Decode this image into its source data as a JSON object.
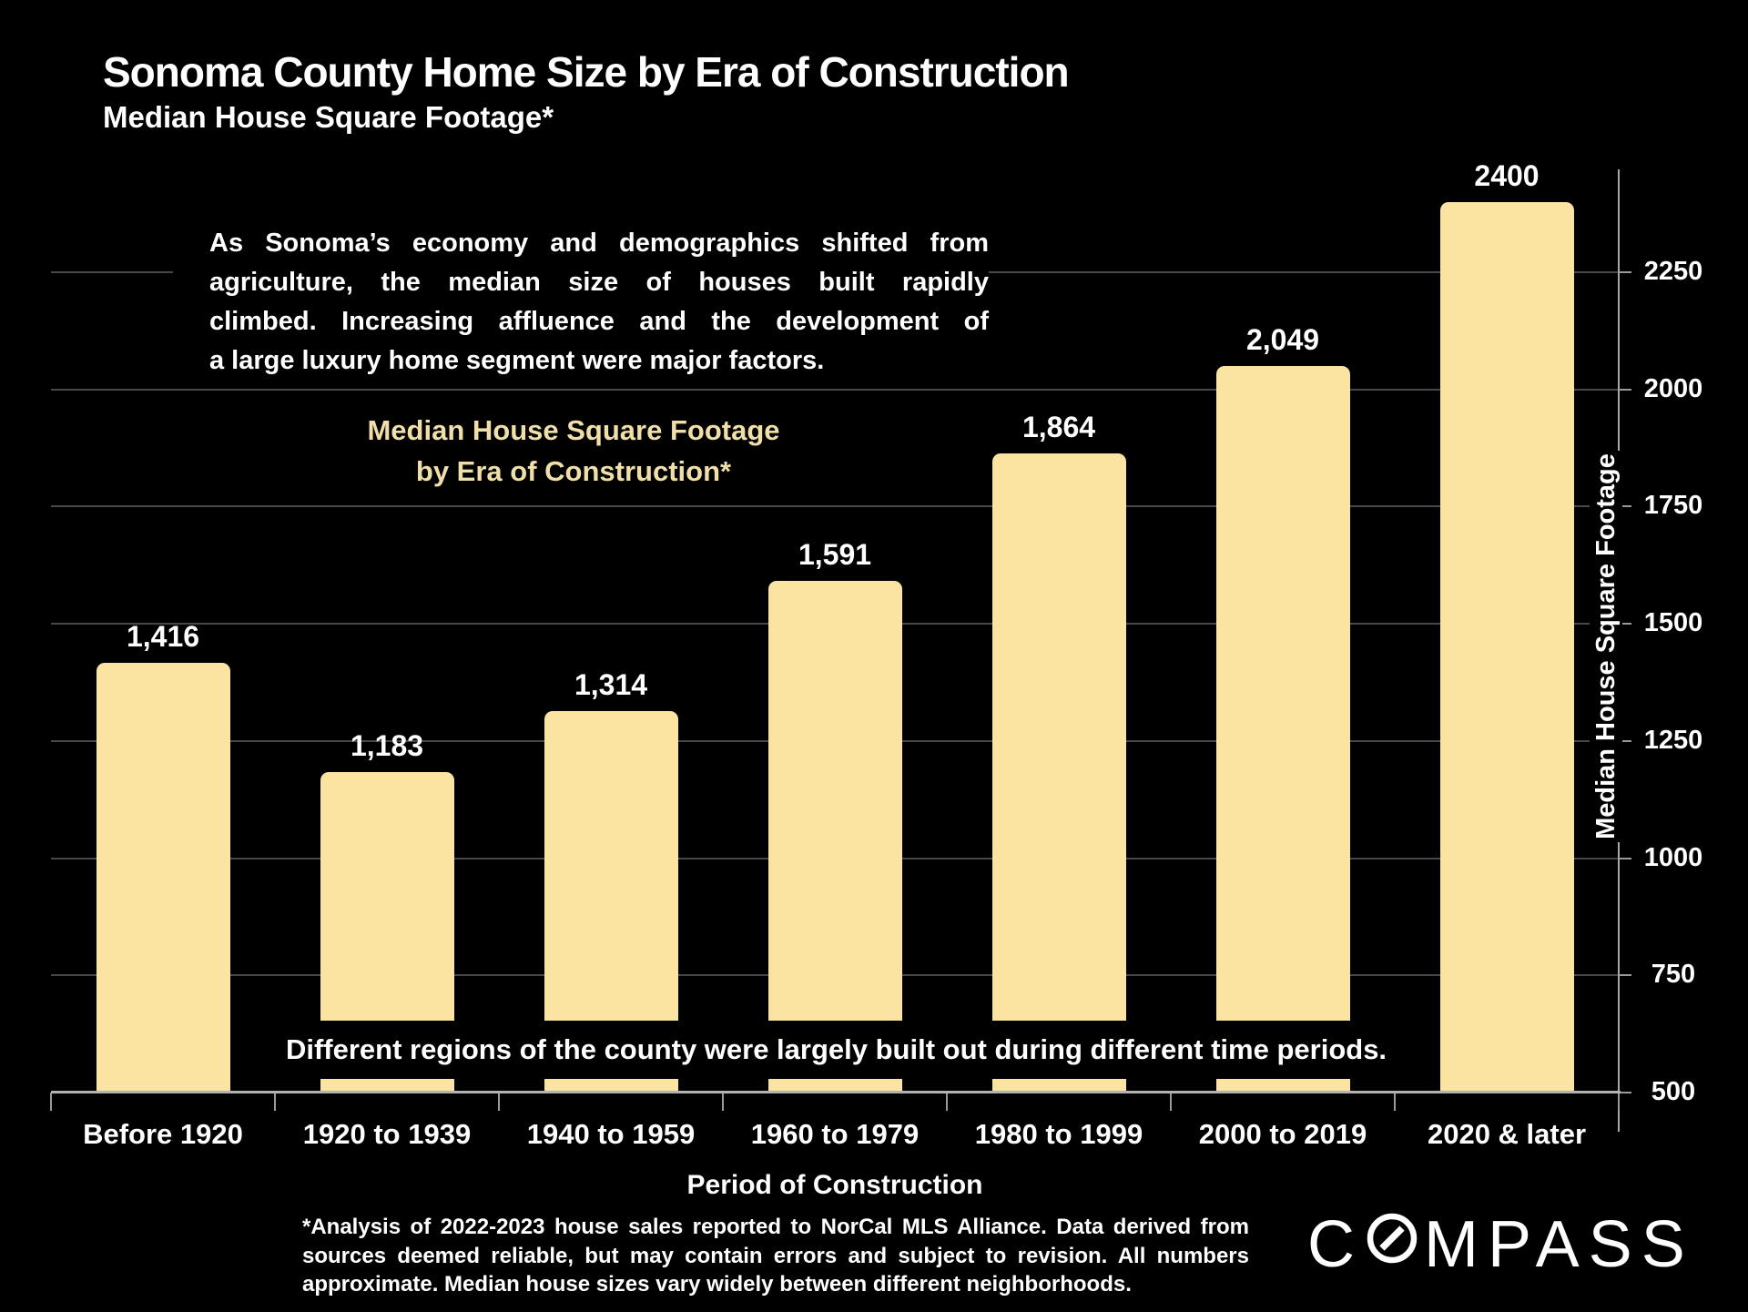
{
  "slide": {
    "title": "Sonoma County Home Size by Era of Construction",
    "subtitle": "Median House Square Footage*",
    "commentary_lines": [
      "As Sonoma’s economy and demographics shifted from",
      "agriculture, the median size of houses built rapidly",
      "climbed. Increasing affluence and the development of",
      "a large luxury home segment were major factors."
    ],
    "chart_heading": {
      "line1": "Median House Square Footage",
      "line2": "by Era of Construction*"
    },
    "band_note": "Different regions of the county were largely built out during different time periods.",
    "footnote_lines": [
      "*Analysis of 2022-2023 house sales reported to NorCal MLS Alliance.  Data derived from",
      "sources deemed reliable, but may contain errors and subject to revision. All numbers",
      "approximate. Median house sizes vary widely between different neighborhoods."
    ],
    "brand": "COMPASS",
    "brand_letters_before_icon": "C",
    "brand_letters_after_icon": "MPASS"
  },
  "chart_data": {
    "type": "bar",
    "title": "Median House Square Footage by Era of Construction*",
    "categories": [
      "Before 1920",
      "1920 to 1939",
      "1940 to 1959",
      "1960 to 1979",
      "1980 to 1999",
      "2000 to 2019",
      "2020 & later"
    ],
    "values": [
      1416,
      1183,
      1314,
      1591,
      1864,
      2049,
      2400
    ],
    "value_labels": [
      "1,416",
      "1,183",
      "1,314",
      "1,591",
      "1,864",
      "2,049",
      "2400"
    ],
    "xlabel": "Period of Construction",
    "ylabel": "Median House Square Footage",
    "ylim": [
      500,
      2450
    ],
    "yticks": [
      500,
      750,
      1000,
      1250,
      1500,
      1750,
      2000,
      2250
    ],
    "y_axis_side": "right",
    "grid": true,
    "legend": "none",
    "bar_color": "#FBE3A2",
    "background": "#000000",
    "text_color": "#FFFFFF",
    "accent_text_color": "#F0DFA8",
    "gridline_color": "#474747",
    "axis_color": "#A9A9A9"
  }
}
